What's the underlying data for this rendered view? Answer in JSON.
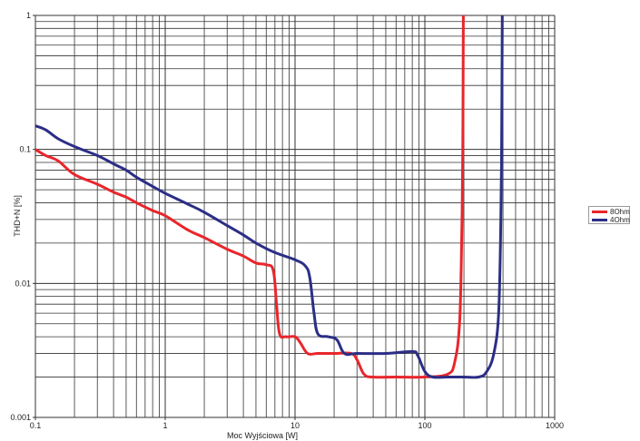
{
  "chart_data": {
    "type": "line",
    "title": "",
    "xlabel": "Moc Wyjściowa [W]",
    "ylabel": "THD+N [%]",
    "xscale": "log",
    "yscale": "log",
    "xlim": [
      0.1,
      1000
    ],
    "ylim": [
      0.001,
      1
    ],
    "x_tick_labels": [
      "0.1",
      "1",
      "10",
      "100",
      "1000"
    ],
    "y_tick_labels": [
      "0.001",
      "0.01",
      "0.1",
      "1"
    ],
    "grid": true,
    "legend_position": "right",
    "series": [
      {
        "name": "8Ohm",
        "color": "#e8262b",
        "points": [
          [
            0.1,
            0.1
          ],
          [
            0.12,
            0.09
          ],
          [
            0.15,
            0.082
          ],
          [
            0.2,
            0.065
          ],
          [
            0.3,
            0.055
          ],
          [
            0.4,
            0.048
          ],
          [
            0.5,
            0.044
          ],
          [
            0.6,
            0.04
          ],
          [
            0.8,
            0.035
          ],
          [
            1,
            0.032
          ],
          [
            1.5,
            0.025
          ],
          [
            2,
            0.022
          ],
          [
            3,
            0.018
          ],
          [
            4,
            0.016
          ],
          [
            5,
            0.0142
          ],
          [
            6,
            0.0138
          ],
          [
            6.8,
            0.0125
          ],
          [
            7.2,
            0.007
          ],
          [
            7.6,
            0.0042
          ],
          [
            8.5,
            0.004
          ],
          [
            10,
            0.004
          ],
          [
            11,
            0.0036
          ],
          [
            12.5,
            0.003
          ],
          [
            15,
            0.003
          ],
          [
            20,
            0.003
          ],
          [
            27,
            0.003
          ],
          [
            30,
            0.0027
          ],
          [
            34,
            0.0021
          ],
          [
            40,
            0.002
          ],
          [
            60,
            0.002
          ],
          [
            100,
            0.002
          ],
          [
            150,
            0.0021
          ],
          [
            170,
            0.0026
          ],
          [
            185,
            0.005
          ],
          [
            192,
            0.02
          ],
          [
            196,
            0.1
          ],
          [
            198,
            1
          ]
        ]
      },
      {
        "name": "4Ohm",
        "color": "#2b2e86",
        "points": [
          [
            0.1,
            0.15
          ],
          [
            0.12,
            0.14
          ],
          [
            0.15,
            0.12
          ],
          [
            0.2,
            0.105
          ],
          [
            0.3,
            0.09
          ],
          [
            0.4,
            0.078
          ],
          [
            0.5,
            0.07
          ],
          [
            0.6,
            0.062
          ],
          [
            0.8,
            0.053
          ],
          [
            1,
            0.047
          ],
          [
            1.5,
            0.039
          ],
          [
            2,
            0.034
          ],
          [
            3,
            0.027
          ],
          [
            4,
            0.023
          ],
          [
            5,
            0.02
          ],
          [
            7,
            0.017
          ],
          [
            10,
            0.015
          ],
          [
            12,
            0.0135
          ],
          [
            13,
            0.011
          ],
          [
            14,
            0.006
          ],
          [
            15,
            0.0042
          ],
          [
            18,
            0.004
          ],
          [
            21,
            0.0038
          ],
          [
            24,
            0.003
          ],
          [
            30,
            0.003
          ],
          [
            50,
            0.003
          ],
          [
            80,
            0.0031
          ],
          [
            88,
            0.0029
          ],
          [
            100,
            0.0022
          ],
          [
            115,
            0.002
          ],
          [
            150,
            0.002
          ],
          [
            200,
            0.002
          ],
          [
            260,
            0.002
          ],
          [
            300,
            0.0022
          ],
          [
            340,
            0.003
          ],
          [
            370,
            0.006
          ],
          [
            385,
            0.03
          ],
          [
            392,
            0.2
          ],
          [
            395,
            1
          ]
        ]
      }
    ]
  }
}
